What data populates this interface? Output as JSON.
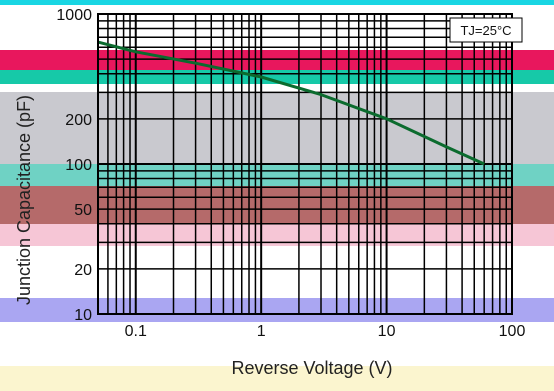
{
  "chart_data": {
    "type": "line",
    "title": "",
    "xlabel": "Reverse Voltage (V)",
    "ylabel": "Junction Capacitance (pF)",
    "x_scale": "log",
    "y_scale": "log",
    "xlim": [
      0.05,
      100
    ],
    "ylim": [
      10,
      1000
    ],
    "x_ticks": [
      0.1,
      1,
      10,
      100
    ],
    "x_tick_labels": [
      "0.1",
      "1",
      "10",
      "100"
    ],
    "y_ticks": [
      10,
      20,
      50,
      100,
      200,
      1000
    ],
    "y_tick_labels": [
      "10",
      "20",
      "50",
      "100",
      "200",
      "1000"
    ],
    "grid": true,
    "annotation": "TJ=25°C",
    "series": [
      {
        "color": "#0b6b2e",
        "x": [
          0.05,
          0.1,
          0.3,
          1,
          3,
          10,
          30,
          60
        ],
        "y": [
          650,
          560,
          470,
          380,
          290,
          200,
          130,
          100
        ]
      }
    ],
    "colors": {
      "curve": "#0b6b2e",
      "grid": "#000000",
      "band_cyan": "#19d6e3",
      "band_magenta": "#e8175d",
      "band_teal": "#16c9a8",
      "band_gray": "#c9c9cf",
      "band_brown": "#b35a5a",
      "band_pink": "#f6c6d6",
      "band_blue": "#a5a0f0",
      "band_yellow": "#fbf5cf"
    }
  }
}
